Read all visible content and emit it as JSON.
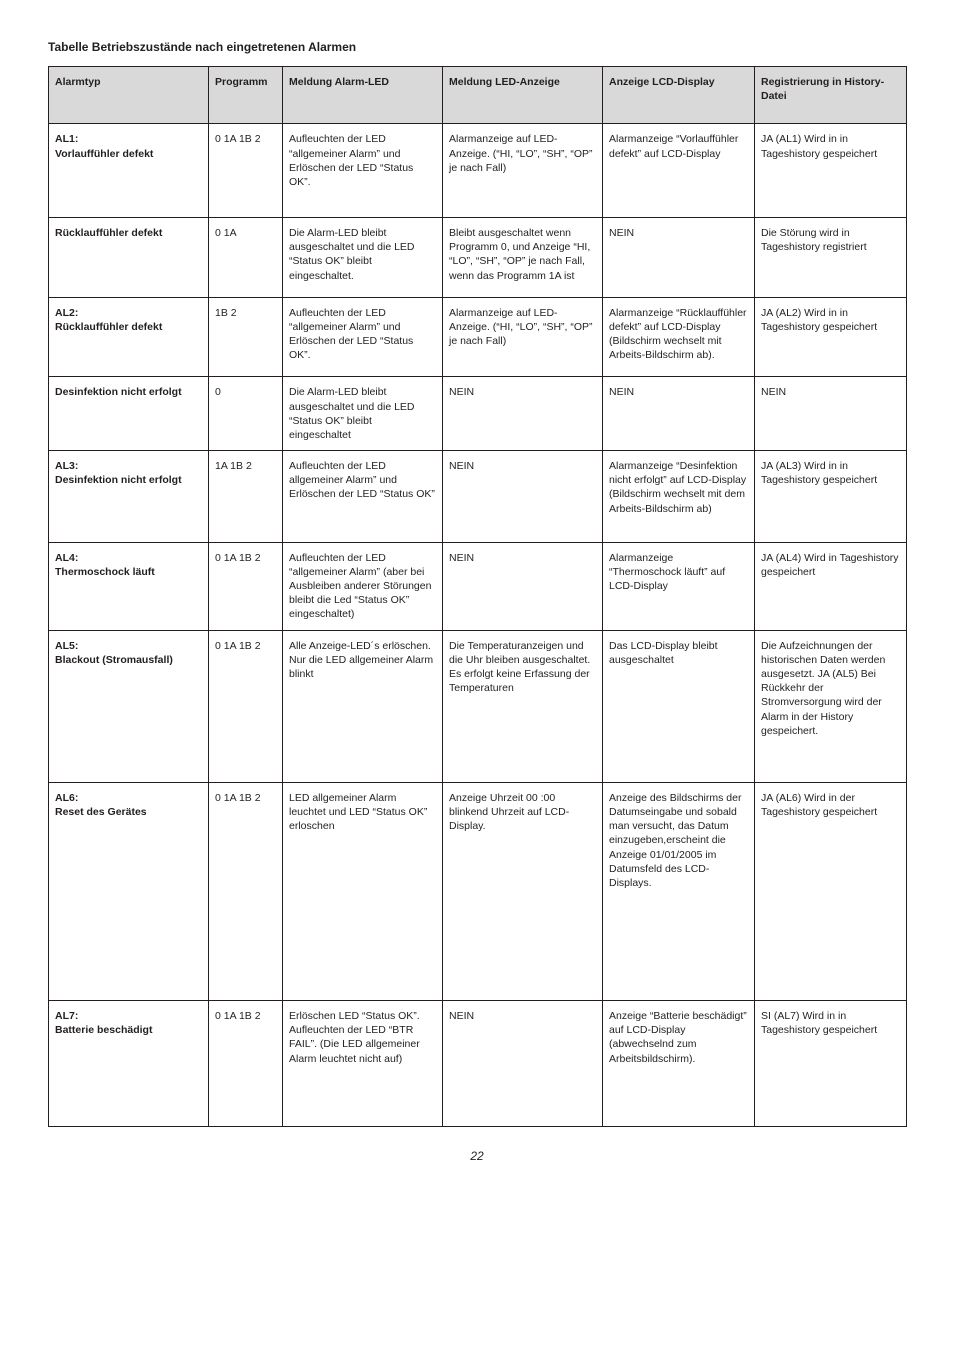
{
  "title": "Tabelle Betriebszustände nach eingetretenen Alarmen",
  "page_number": "22",
  "table": {
    "columns": [
      "Alarmtyp",
      "Programm",
      "Meldung Alarm-LED",
      "Meldung LED-Anzeige",
      "Anzeige LCD-Display",
      "Registrierung in History-Datei"
    ],
    "rows": [
      {
        "c0": "AL1:\nVorlauffühler defekt",
        "c1": "0 1A 1B 2",
        "c2": "Aufleuchten der LED “allgemeiner Alarm” und Erlöschen der LED “Status OK”.",
        "c3": "Alarmanzeige auf LED-Anzeige. (“HI, “LO”, “SH”, “OP” je nach Fall)",
        "c4": "Alarmanzeige “Vorlauffühler defekt” auf LCD-Display",
        "c5": "JA (AL1) Wird in in Tageshistory gespeichert",
        "pad": 28
      },
      {
        "c0": "Rücklauffühler defekt",
        "c1": "0 1A",
        "c2": "Die Alarm-LED bleibt ausgeschaltet und die LED “Status OK” bleibt eingeschaltet.",
        "c3": "Bleibt ausgeschaltet wenn Programm 0, und Anzeige “HI, “LO”, “SH”, “OP” je nach Fall, wenn das Programm 1A ist",
        "c4": "NEIN",
        "c5": "Die Störung wird in Tageshistory registriert",
        "pad": 14
      },
      {
        "c0": "AL2:\nRücklauffühler defekt",
        "c1": "1B 2",
        "c2": "Aufleuchten der LED “allgemeiner Alarm” und Erlöschen der LED “Status OK”.",
        "c3": "Alarmanzeige auf LED-Anzeige. (“HI, “LO”, “SH”, “OP” je nach Fall)",
        "c4": "Alarmanzeige “Rücklauffühler defekt” auf LCD-Display (Bildschirm wechselt mit Arbeits-Bildschirm ab).",
        "c5": "JA (AL2) Wird in in Tageshistory gespeichert",
        "pad": 14
      },
      {
        "c0": "Desinfektion nicht erfolgt",
        "c1": "0",
        "c2": "Die Alarm-LED bleibt ausgeschaltet und die LED “Status OK” bleibt eingeschaltet",
        "c3": "NEIN",
        "c4": "NEIN",
        "c5": "NEIN",
        "pad": 8
      },
      {
        "c0": "AL3:\nDesinfektion nicht erfolgt",
        "c1": "1A 1B 2",
        "c2": "Aufleuchten der LED allgemeiner Alarm” und Erlöschen der LED “Status OK”",
        "c3": "NEIN",
        "c4": "Alarmanzeige “Desinfektion nicht erfolgt” auf LCD-Display (Bildschirm wechselt mit dem Arbeits-Bildschirm ab)",
        "c5": "JA (AL3) Wird in in Tageshistory gespeichert",
        "pad": 26
      },
      {
        "c0": "AL4:\nThermoschock läuft",
        "c1": "0 1A 1B 2",
        "c2": "Aufleuchten der LED “allgemeiner Alarm” (aber bei Ausbleiben anderer Störungen bleibt die Led “Status OK” eingeschaltet)",
        "c3": "NEIN",
        "c4": "Alarmanzeige “Thermoschock läuft” auf LCD-Display",
        "c5": "JA (AL4) Wird in Tageshistory gespeichert",
        "pad": 8
      },
      {
        "c0": "AL5:\nBlackout (Stromausfall)",
        "c1": "0 1A 1B 2",
        "c2": "Alle Anzeige-LED´s erlöschen. Nur die LED allgemeiner Alarm blinkt",
        "c3": "Die Temperaturanzeigen und die Uhr bleiben ausgeschaltet. Es erfolgt keine Erfassung der Temperaturen",
        "c4": "Das LCD-Display bleibt ausgeschaltet",
        "c5": "Die Aufzeichnungen der historischen Daten werden ausgesetzt. JA (AL5) Bei Rückkehr der Stromversorgung wird der Alarm in der History gespeichert.",
        "pad": 44
      },
      {
        "c0": "AL6:\nReset des Gerätes",
        "c1": "0 1A 1B 2",
        "c2": "LED allgemeiner Alarm leuchtet und LED “Status OK” erloschen",
        "c3": "Anzeige Uhrzeit 00 :00 blinkend Uhrzeit auf LCD-Display.",
        "c4": "Anzeige des Bildschirms der Datumseingabe und sobald man versucht, das Datum einzugeben,erscheint die Anzeige 01/01/2005 im Datumsfeld des LCD-Displays.",
        "c5": "JA (AL6) Wird in der Tageshistory gespeichert",
        "pad": 110
      },
      {
        "c0": "AL7:\nBatterie beschädigt",
        "c1": "0 1A 1B 2",
        "c2": "Erlöschen LED “Status OK”. Aufleuchten der LED “BTR FAIL”. (Die LED allgemeiner Alarm leuchtet nicht auf)",
        "c3": "NEIN",
        "c4": "Anzeige “Batterie beschädigt” auf LCD-Display (abwechselnd zum Arbeitsbildschirm).",
        "c5": "SI (AL7) Wird in in Tageshistory gespeichert",
        "pad": 60
      }
    ]
  }
}
